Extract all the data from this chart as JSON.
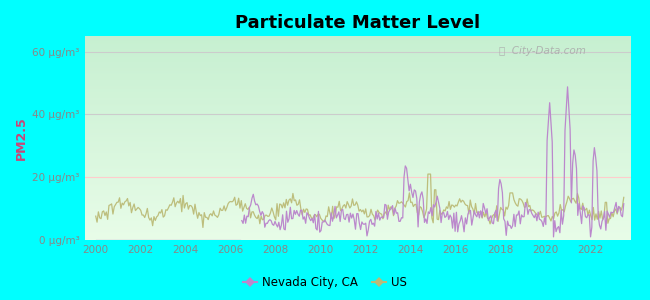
{
  "title": "Particulate Matter Level",
  "ylabel": "PM2.5",
  "ylim": [
    0,
    65
  ],
  "yticks": [
    0,
    20,
    40,
    60
  ],
  "ytick_labels": [
    "0 μg/m³",
    "20 μg/m³",
    "40 μg/m³",
    "60 μg/m³"
  ],
  "xlim": [
    1999.5,
    2023.8
  ],
  "xticks": [
    2000,
    2002,
    2004,
    2006,
    2008,
    2010,
    2012,
    2014,
    2016,
    2018,
    2020,
    2022
  ],
  "background_outer": "#00FFFF",
  "nevada_color": "#bb88cc",
  "us_color": "#bbbb77",
  "grid_color_h20": "#ffbbbb",
  "grid_color_h40": "#dddddd",
  "grid_color_h60": "#dddddd",
  "legend_nevada": "Nevada City, CA",
  "legend_us": "US",
  "watermark": "City-Data.com",
  "plot_bg_top": "#d0eed8",
  "plot_bg_bottom": "#e8fce8"
}
